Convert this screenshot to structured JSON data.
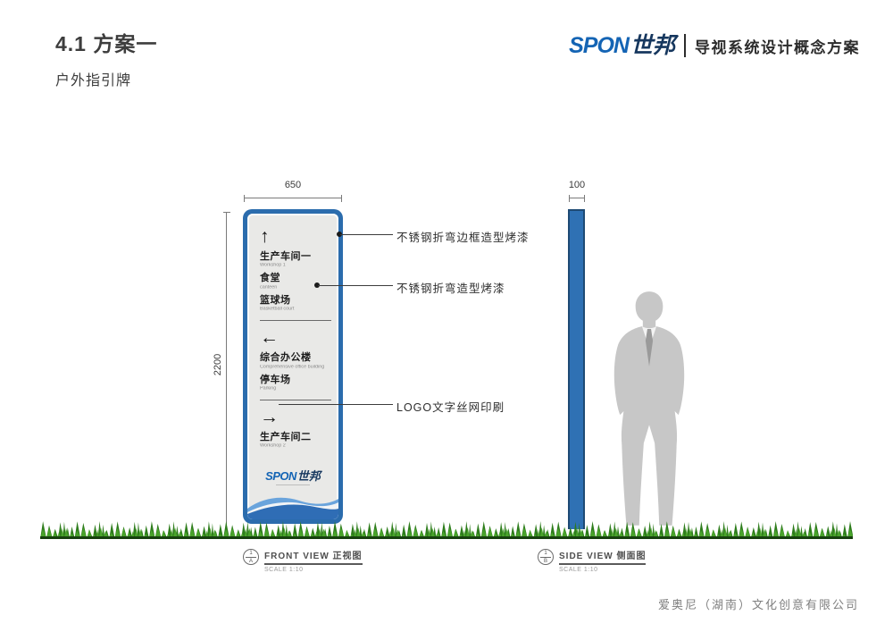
{
  "page": {
    "title": "4.1 方案一",
    "subtitle": "户外指引牌",
    "brand": {
      "latin": "SPON",
      "cjk": "世邦"
    },
    "doc_title": "导视系统设计概念方案",
    "company": "爱奥尼（湖南）文化创意有限公司"
  },
  "colors": {
    "accent_blue": "#2b6cad",
    "logo_blue": "#1464b4",
    "logo_navy": "#16375e",
    "panel_face": "#e9e9e7",
    "silhouette_gray": "#c7c7c7",
    "grass_front": "#49a32b",
    "grass_back": "#2e7d1c",
    "grass_base": "#16400e"
  },
  "front_view": {
    "width_dim": "650",
    "height_dim": "2200",
    "groups": [
      {
        "arrow": "up",
        "arrow_glyph": "↑",
        "items": [
          {
            "cn": "生产车间一",
            "en": "Workshop 1"
          },
          {
            "cn": "食堂",
            "en": "canteen"
          },
          {
            "cn": "篮球场",
            "en": "Basketball court"
          }
        ]
      },
      {
        "arrow": "left",
        "arrow_glyph": "←",
        "items": [
          {
            "cn": "综合办公楼",
            "en": "Comprehensive office building"
          },
          {
            "cn": "停车场",
            "en": "Parking"
          }
        ]
      },
      {
        "arrow": "right",
        "arrow_glyph": "→",
        "items": [
          {
            "cn": "生产车间二",
            "en": "Workshop 2"
          }
        ]
      }
    ],
    "panel_brand": {
      "latin": "SPON",
      "cjk": "世邦"
    },
    "caption": {
      "ref_num": "1",
      "ref_letter": "A",
      "title": "FRONT VIEW 正视图",
      "scale": "SCALE 1:10"
    }
  },
  "side_view": {
    "width_dim": "100",
    "caption": {
      "ref_num": "1",
      "ref_letter": "B",
      "title": "SIDE VIEW 侧面图",
      "scale": "SCALE 1:10"
    }
  },
  "annotations": [
    {
      "label": "不锈钢折弯边框造型烤漆"
    },
    {
      "label": "不锈钢折弯造型烤漆"
    },
    {
      "label": "LOGO文字丝网印刷"
    }
  ]
}
